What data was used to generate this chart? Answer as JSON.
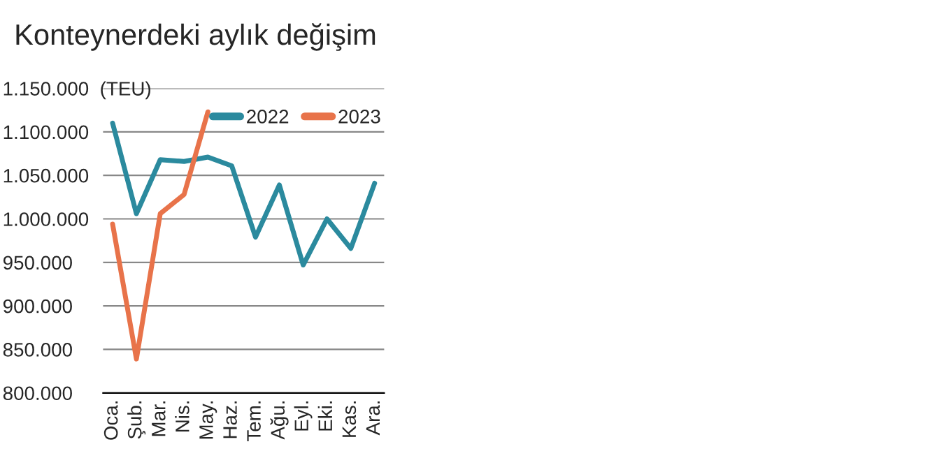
{
  "chart_data": {
    "type": "line",
    "title": "Konteynerdeki aylık değişim",
    "categories": [
      "Oca.",
      "Şub.",
      "Mar.",
      "Nis.",
      "May.",
      "Haz.",
      "Tem.",
      "Ağu.",
      "Eyl.",
      "Eki.",
      "Kas.",
      "Ara."
    ],
    "series": [
      {
        "name": "2022",
        "color": "#2b8a9e",
        "values": [
          1110000,
          1006000,
          1068000,
          1066000,
          1071000,
          1061000,
          979000,
          1039000,
          947000,
          1000000,
          966000,
          1041000
        ]
      },
      {
        "name": "2023",
        "color": "#e8734a",
        "values": [
          994000,
          839000,
          1006000,
          1028000,
          1123000,
          null,
          null,
          null,
          null,
          null,
          null,
          null
        ]
      }
    ],
    "ylim": [
      800000,
      1150000
    ],
    "yticks": [
      {
        "value": 800000,
        "label": "800.000"
      },
      {
        "value": 850000,
        "label": "850.000"
      },
      {
        "value": 900000,
        "label": "900.000"
      },
      {
        "value": 950000,
        "label": "950.000"
      },
      {
        "value": 1000000,
        "label": "1.000.000"
      },
      {
        "value": 1050000,
        "label": "1.050.000"
      },
      {
        "value": 1100000,
        "label": "1.100.000"
      },
      {
        "value": 1150000,
        "label": "1.150.000  (TEU)"
      }
    ],
    "grid": "y",
    "legend": "top right",
    "line_style": "solid",
    "marker": "none"
  }
}
